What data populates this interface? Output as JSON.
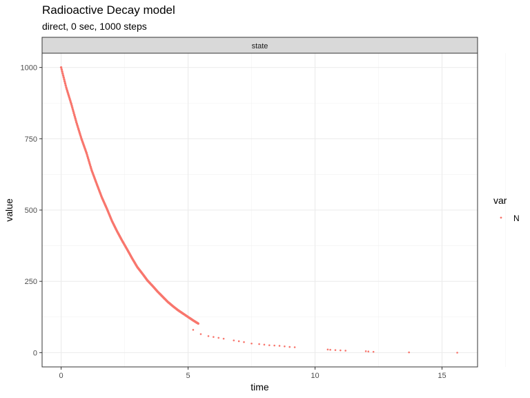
{
  "chart_data": {
    "type": "scatter",
    "title": "Radioactive Decay model",
    "subtitle": "direct, 0 sec, 1000 steps",
    "facet_label": "state",
    "xlabel": "time",
    "ylabel": "value",
    "xlim": [
      -0.75,
      16.4
    ],
    "ylim": [
      -50,
      1050
    ],
    "x_ticks": [
      0,
      5,
      10,
      15
    ],
    "y_ticks": [
      0,
      250,
      500,
      750,
      1000
    ],
    "grid": true,
    "legend": {
      "title": "var",
      "position": "right"
    },
    "series": [
      {
        "name": "N",
        "color": "#F8766D",
        "curve": {
          "x": [
            0.0,
            0.2,
            0.4,
            0.6,
            0.8,
            1.0,
            1.2,
            1.4,
            1.6,
            1.8,
            2.0,
            2.2,
            2.4,
            2.6,
            2.8,
            3.0,
            3.2,
            3.4,
            3.6,
            3.8,
            4.0,
            4.2,
            4.4,
            4.6,
            4.8,
            5.0,
            5.2,
            5.4
          ],
          "y": [
            1000,
            930,
            872,
            808,
            750,
            700,
            640,
            592,
            545,
            505,
            462,
            426,
            393,
            362,
            330,
            300,
            277,
            253,
            234,
            214,
            196,
            178,
            163,
            149,
            137,
            125,
            113,
            102
          ]
        },
        "tail_points": {
          "x": [
            5.2,
            5.5,
            5.8,
            6.0,
            6.2,
            6.4,
            6.8,
            7.0,
            7.2,
            7.5,
            7.8,
            8.0,
            8.2,
            8.4,
            8.6,
            8.8,
            9.0,
            9.2,
            10.5,
            10.6,
            10.8,
            11.0,
            11.2,
            12.0,
            12.1,
            12.3,
            13.7,
            15.6
          ],
          "y": [
            80,
            65,
            58,
            55,
            52,
            49,
            43,
            40,
            37,
            32,
            30,
            28,
            26,
            25,
            24,
            22,
            20,
            19,
            11,
            10,
            9,
            8,
            7,
            5,
            4,
            3,
            1,
            0
          ]
        }
      }
    ]
  }
}
